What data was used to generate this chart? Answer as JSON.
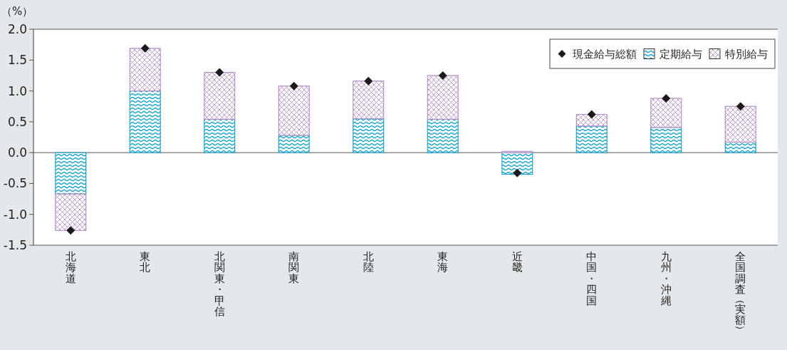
{
  "chart_data": {
    "type": "bar",
    "stacked": true,
    "ylabel": "（%）",
    "categories": [
      "北海道",
      "東北",
      "北関東・甲信",
      "南関東",
      "北陸",
      "東海",
      "近畿",
      "中国・四国",
      "九州・沖縄",
      "全国調査（実額）"
    ],
    "series": [
      {
        "name": "現金給与総額",
        "type": "scatter",
        "color": "#1a1a1a",
        "marker": "diamond",
        "values": [
          -1.26,
          1.69,
          1.3,
          1.08,
          1.16,
          1.25,
          -0.33,
          0.62,
          0.88,
          0.75
        ]
      },
      {
        "name": "定期給与",
        "color": "#1aa3c8",
        "values": [
          -0.67,
          1.0,
          0.54,
          0.28,
          0.55,
          0.54,
          -0.35,
          0.43,
          0.41,
          0.17
        ]
      },
      {
        "name": "特別給与",
        "color": "#b58fc8",
        "values": [
          -0.59,
          0.69,
          0.76,
          0.8,
          0.61,
          0.71,
          0.02,
          0.19,
          0.47,
          0.58
        ]
      }
    ],
    "ylim": [
      -1.5,
      2.0
    ],
    "yticks": [
      {
        "value": -1.5,
        "label": "-1.5"
      },
      {
        "value": -1.0,
        "label": "-1.0"
      },
      {
        "value": -0.5,
        "label": "-0.5"
      },
      {
        "value": 0,
        "label": "0.0"
      },
      {
        "value": 0.5,
        "label": "0.5"
      },
      {
        "value": 1.0,
        "label": "1.0"
      },
      {
        "value": 1.5,
        "label": "1.5"
      },
      {
        "value": 2.0,
        "label": "2.0"
      }
    ],
    "ref_lines": [
      {
        "axis": "y",
        "value": 0,
        "color": "#777777"
      }
    ],
    "grid": false,
    "legend": "top right"
  }
}
